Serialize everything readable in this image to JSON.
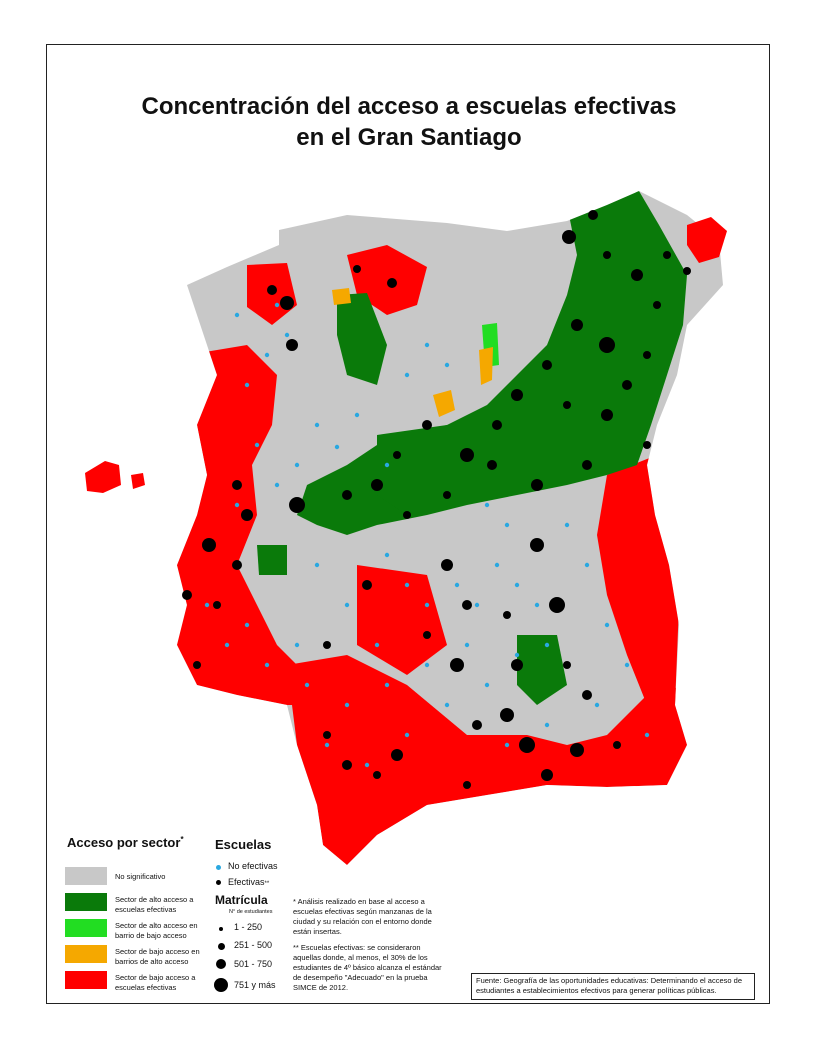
{
  "title_line1": "Concentración del acceso a escuelas efectivas",
  "title_line2": "en el Gran Santiago",
  "legend_sector": {
    "heading": "Acceso por sector",
    "heading_mark": "*",
    "items": [
      {
        "label": "No significativo",
        "color": "#c8c8c8"
      },
      {
        "label": "Sector de alto acceso a escuelas efectivas",
        "color": "#0a7a0a"
      },
      {
        "label": "Sector de alto acceso en barrio de bajo acceso",
        "color": "#22dd22"
      },
      {
        "label": "Sector de bajo acceso en barrios de alto acceso",
        "color": "#f5a800"
      },
      {
        "label": "Sector de bajo acceso a escuelas efectivas",
        "color": "#ff0000"
      }
    ]
  },
  "legend_escuelas": {
    "heading": "Escuelas",
    "no_efectivas": "No efectivas",
    "efectivas": "Efectivas",
    "efectivas_mark": "**",
    "no_efectivas_color": "#2aa8e0",
    "efectivas_color": "#000000"
  },
  "legend_matricula": {
    "heading": "Matrícula",
    "subheading": "N° de estudiantes",
    "sizes": [
      "1 - 250",
      "251 - 500",
      "501 - 750",
      "751 y más"
    ]
  },
  "note1": "* Análisis realizado en base al acceso a escuelas efectivas según manzanas de la ciudad y su relación con el entorno donde están insertas.",
  "note2": "** Escuelas efectivas: se consideraron aquellas donde, al menos, el 30% de los estudiantes de 4º básico alcanza el estándar de desempeño \"Adecuado\" en la prueba SIMCE de 2012.",
  "source": "Fuente: Geografía de las oportunidades educativas: Determinando el acceso de estudiantes a establecimientos efectivos para generar políticas públicas."
}
